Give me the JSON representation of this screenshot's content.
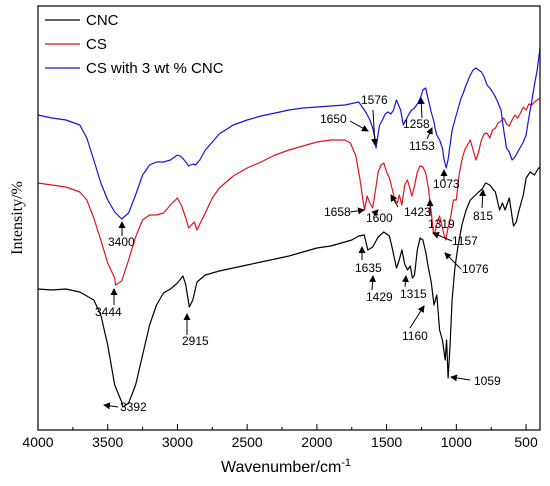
{
  "chart_data": {
    "type": "line",
    "title": "",
    "xlabel": "Wavenumber/cm",
    "xlabel_sup": "-1",
    "ylabel": "Intensity/%",
    "xlim": [
      4000,
      400
    ],
    "xticks": [
      4000,
      3500,
      3000,
      2500,
      2000,
      1500,
      1000,
      500
    ],
    "y_tick_labels": false,
    "grid": false,
    "legend_position": "top-left",
    "series": [
      {
        "name": "CNC",
        "color": "#000000",
        "points": [
          [
            4000,
            289
          ],
          [
            3900,
            290
          ],
          [
            3800,
            289
          ],
          [
            3700,
            292
          ],
          [
            3600,
            300
          ],
          [
            3550,
            315
          ],
          [
            3500,
            345
          ],
          [
            3450,
            385
          ],
          [
            3400,
            402
          ],
          [
            3392,
            407
          ],
          [
            3350,
            403
          ],
          [
            3300,
            385
          ],
          [
            3250,
            355
          ],
          [
            3200,
            325
          ],
          [
            3150,
            305
          ],
          [
            3100,
            293
          ],
          [
            3050,
            289
          ],
          [
            3000,
            283
          ],
          [
            2960,
            276
          ],
          [
            2940,
            285
          ],
          [
            2915,
            307
          ],
          [
            2890,
            300
          ],
          [
            2860,
            282
          ],
          [
            2800,
            275
          ],
          [
            2700,
            271
          ],
          [
            2600,
            268
          ],
          [
            2500,
            265
          ],
          [
            2400,
            262
          ],
          [
            2300,
            259
          ],
          [
            2200,
            256
          ],
          [
            2100,
            252
          ],
          [
            2000,
            248
          ],
          [
            1900,
            246
          ],
          [
            1800,
            242
          ],
          [
            1750,
            240
          ],
          [
            1700,
            236
          ],
          [
            1660,
            235
          ],
          [
            1635,
            250
          ],
          [
            1600,
            247
          ],
          [
            1560,
            237
          ],
          [
            1520,
            232
          ],
          [
            1480,
            236
          ],
          [
            1460,
            248
          ],
          [
            1445,
            258
          ],
          [
            1429,
            268
          ],
          [
            1410,
            260
          ],
          [
            1390,
            250
          ],
          [
            1370,
            264
          ],
          [
            1350,
            270
          ],
          [
            1330,
            266
          ],
          [
            1315,
            278
          ],
          [
            1300,
            275
          ],
          [
            1280,
            250
          ],
          [
            1260,
            238
          ],
          [
            1240,
            240
          ],
          [
            1220,
            252
          ],
          [
            1200,
            268
          ],
          [
            1180,
            282
          ],
          [
            1160,
            305
          ],
          [
            1140,
            295
          ],
          [
            1120,
            330
          ],
          [
            1100,
            340
          ],
          [
            1080,
            360
          ],
          [
            1070,
            340
          ],
          [
            1059,
            378
          ],
          [
            1045,
            345
          ],
          [
            1030,
            300
          ],
          [
            1010,
            268
          ],
          [
            990,
            248
          ],
          [
            960,
            225
          ],
          [
            930,
            210
          ],
          [
            900,
            200
          ],
          [
            870,
            196
          ],
          [
            840,
            192
          ],
          [
            815,
            189
          ],
          [
            790,
            183
          ],
          [
            760,
            185
          ],
          [
            720,
            192
          ],
          [
            690,
            210
          ],
          [
            670,
            203
          ],
          [
            650,
            210
          ],
          [
            620,
            198
          ],
          [
            590,
            226
          ],
          [
            570,
            222
          ],
          [
            550,
            210
          ],
          [
            520,
            195
          ],
          [
            500,
            178
          ],
          [
            470,
            172
          ],
          [
            440,
            175
          ],
          [
            410,
            168
          ],
          [
            400,
            168
          ]
        ]
      },
      {
        "name": "CS",
        "color": "#e0141e",
        "points": [
          [
            4000,
            183
          ],
          [
            3900,
            185
          ],
          [
            3800,
            187
          ],
          [
            3700,
            192
          ],
          [
            3650,
            200
          ],
          [
            3600,
            218
          ],
          [
            3550,
            240
          ],
          [
            3500,
            263
          ],
          [
            3450,
            278
          ],
          [
            3444,
            285
          ],
          [
            3400,
            281
          ],
          [
            3350,
            260
          ],
          [
            3300,
            237
          ],
          [
            3250,
            220
          ],
          [
            3200,
            215
          ],
          [
            3150,
            215
          ],
          [
            3100,
            213
          ],
          [
            3050,
            205
          ],
          [
            3000,
            198
          ],
          [
            2970,
            206
          ],
          [
            2940,
            218
          ],
          [
            2920,
            228
          ],
          [
            2880,
            222
          ],
          [
            2860,
            230
          ],
          [
            2840,
            224
          ],
          [
            2800,
            213
          ],
          [
            2750,
            198
          ],
          [
            2700,
            188
          ],
          [
            2600,
            176
          ],
          [
            2500,
            168
          ],
          [
            2400,
            162
          ],
          [
            2300,
            155
          ],
          [
            2200,
            150
          ],
          [
            2100,
            146
          ],
          [
            2000,
            142
          ],
          [
            1900,
            140
          ],
          [
            1850,
            140
          ],
          [
            1800,
            140
          ],
          [
            1760,
            143
          ],
          [
            1720,
            156
          ],
          [
            1690,
            180
          ],
          [
            1670,
            200
          ],
          [
            1658,
            210
          ],
          [
            1640,
            196
          ],
          [
            1620,
            203
          ],
          [
            1600,
            208
          ],
          [
            1580,
            190
          ],
          [
            1560,
            172
          ],
          [
            1540,
            165
          ],
          [
            1520,
            163
          ],
          [
            1500,
            172
          ],
          [
            1480,
            178
          ],
          [
            1460,
            189
          ],
          [
            1440,
            200
          ],
          [
            1423,
            203
          ],
          [
            1410,
            195
          ],
          [
            1390,
            205
          ],
          [
            1370,
            185
          ],
          [
            1350,
            180
          ],
          [
            1330,
            190
          ],
          [
            1319,
            196
          ],
          [
            1300,
            186
          ],
          [
            1280,
            172
          ],
          [
            1260,
            166
          ],
          [
            1240,
            167
          ],
          [
            1220,
            173
          ],
          [
            1200,
            188
          ],
          [
            1180,
            212
          ],
          [
            1165,
            232
          ],
          [
            1157,
            234
          ],
          [
            1140,
            224
          ],
          [
            1120,
            216
          ],
          [
            1100,
            228
          ],
          [
            1090,
            234
          ],
          [
            1076,
            240
          ],
          [
            1060,
            228
          ],
          [
            1040,
            216
          ],
          [
            1020,
            200
          ],
          [
            1000,
            200
          ],
          [
            980,
            175
          ],
          [
            960,
            160
          ],
          [
            940,
            150
          ],
          [
            920,
            145
          ],
          [
            900,
            140
          ],
          [
            880,
            150
          ],
          [
            860,
            160
          ],
          [
            840,
            152
          ],
          [
            820,
            140
          ],
          [
            800,
            134
          ],
          [
            780,
            133
          ],
          [
            760,
            138
          ],
          [
            740,
            130
          ],
          [
            720,
            128
          ],
          [
            700,
            123
          ],
          [
            680,
            121
          ],
          [
            660,
            118
          ],
          [
            640,
            124
          ],
          [
            620,
            126
          ],
          [
            600,
            120
          ],
          [
            580,
            115
          ],
          [
            560,
            118
          ],
          [
            540,
            113
          ],
          [
            520,
            107
          ],
          [
            500,
            110
          ],
          [
            480,
            104
          ],
          [
            460,
            105
          ],
          [
            440,
            102
          ],
          [
            420,
            100
          ],
          [
            400,
            98
          ]
        ]
      },
      {
        "name": "CS with 3 wt % CNC",
        "color": "#1414e6",
        "points": [
          [
            4000,
            115
          ],
          [
            3900,
            118
          ],
          [
            3800,
            120
          ],
          [
            3700,
            125
          ],
          [
            3650,
            138
          ],
          [
            3600,
            160
          ],
          [
            3550,
            183
          ],
          [
            3500,
            200
          ],
          [
            3450,
            212
          ],
          [
            3400,
            219
          ],
          [
            3350,
            213
          ],
          [
            3300,
            195
          ],
          [
            3250,
            175
          ],
          [
            3200,
            165
          ],
          [
            3150,
            162
          ],
          [
            3100,
            162
          ],
          [
            3050,
            160
          ],
          [
            3000,
            155
          ],
          [
            2970,
            157
          ],
          [
            2940,
            162
          ],
          [
            2920,
            166
          ],
          [
            2890,
            164
          ],
          [
            2870,
            165
          ],
          [
            2840,
            160
          ],
          [
            2800,
            150
          ],
          [
            2700,
            134
          ],
          [
            2600,
            125
          ],
          [
            2500,
            120
          ],
          [
            2400,
            116
          ],
          [
            2300,
            113
          ],
          [
            2200,
            110
          ],
          [
            2100,
            108
          ],
          [
            2000,
            107
          ],
          [
            1900,
            106
          ],
          [
            1800,
            105
          ],
          [
            1700,
            102
          ],
          [
            1650,
            112
          ],
          [
            1620,
            120
          ],
          [
            1600,
            128
          ],
          [
            1585,
            137
          ],
          [
            1576,
            148
          ],
          [
            1565,
            138
          ],
          [
            1550,
            125
          ],
          [
            1530,
            120
          ],
          [
            1510,
            114
          ],
          [
            1490,
            112
          ],
          [
            1470,
            114
          ],
          [
            1450,
            110
          ],
          [
            1430,
            100
          ],
          [
            1400,
            110
          ],
          [
            1380,
            125
          ],
          [
            1360,
            120
          ],
          [
            1340,
            114
          ],
          [
            1320,
            110
          ],
          [
            1300,
            108
          ],
          [
            1280,
            104
          ],
          [
            1258,
            98
          ],
          [
            1240,
            90
          ],
          [
            1220,
            88
          ],
          [
            1200,
            100
          ],
          [
            1180,
            112
          ],
          [
            1160,
            122
          ],
          [
            1153,
            128
          ],
          [
            1140,
            135
          ],
          [
            1120,
            140
          ],
          [
            1100,
            148
          ],
          [
            1090,
            158
          ],
          [
            1073,
            168
          ],
          [
            1060,
            160
          ],
          [
            1045,
            145
          ],
          [
            1030,
            130
          ],
          [
            1010,
            120
          ],
          [
            990,
            110
          ],
          [
            970,
            100
          ],
          [
            950,
            93
          ],
          [
            930,
            85
          ],
          [
            900,
            75
          ],
          [
            880,
            70
          ],
          [
            860,
            68
          ],
          [
            840,
            70
          ],
          [
            820,
            72
          ],
          [
            800,
            77
          ],
          [
            780,
            85
          ],
          [
            760,
            88
          ],
          [
            740,
            92
          ],
          [
            720,
            97
          ],
          [
            700,
            103
          ],
          [
            680,
            110
          ],
          [
            660,
            130
          ],
          [
            640,
            148
          ],
          [
            620,
            152
          ],
          [
            600,
            160
          ],
          [
            580,
            157
          ],
          [
            560,
            152
          ],
          [
            540,
            147
          ],
          [
            520,
            142
          ],
          [
            500,
            135
          ],
          [
            480,
            118
          ],
          [
            460,
            102
          ],
          [
            440,
            85
          ],
          [
            420,
            70
          ],
          [
            400,
            48
          ]
        ]
      }
    ],
    "annotations": [
      {
        "label": "3392",
        "series": "CNC"
      },
      {
        "label": "2915",
        "series": "CNC"
      },
      {
        "label": "1635",
        "series": "CNC"
      },
      {
        "label": "1429",
        "series": "CNC"
      },
      {
        "label": "1315",
        "series": "CNC"
      },
      {
        "label": "1160",
        "series": "CNC"
      },
      {
        "label": "1059",
        "series": "CNC"
      },
      {
        "label": "3444",
        "series": "CS"
      },
      {
        "label": "1658",
        "series": "CS"
      },
      {
        "label": "1600",
        "series": "CS"
      },
      {
        "label": "1423",
        "series": "CS"
      },
      {
        "label": "1319",
        "series": "CS"
      },
      {
        "label": "1157",
        "series": "CS"
      },
      {
        "label": "1076",
        "series": "CS"
      },
      {
        "label": "815",
        "series": "CS"
      },
      {
        "label": "3400",
        "series": "CS with 3 wt % CNC"
      },
      {
        "label": "1650",
        "series": "CS with 3 wt % CNC"
      },
      {
        "label": "1576",
        "series": "CS with 3 wt % CNC"
      },
      {
        "label": "1258",
        "series": "CS with 3 wt % CNC"
      },
      {
        "label": "1153",
        "series": "CS with 3 wt % CNC"
      },
      {
        "label": "1073",
        "series": "CS with 3 wt % CNC"
      }
    ]
  }
}
